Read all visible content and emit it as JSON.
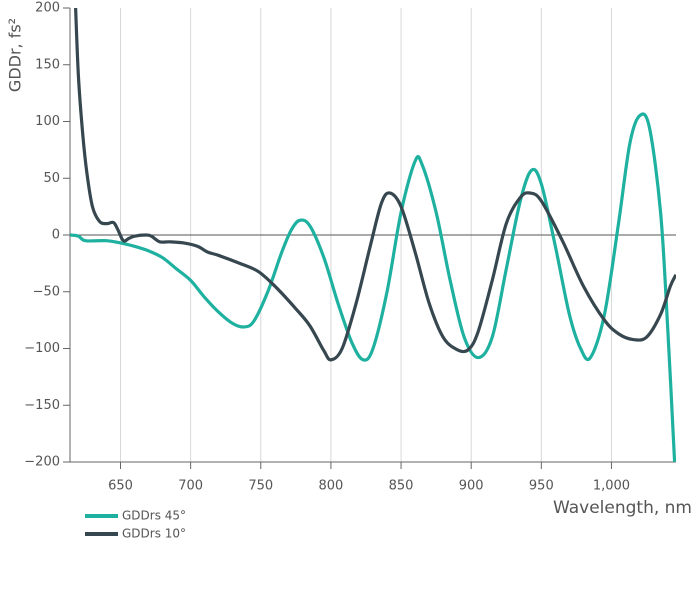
{
  "chart_data": {
    "type": "line",
    "x_label": "Wavelength, nm",
    "y_label": "GDDr, fs²",
    "xlim": [
      614,
      1046
    ],
    "xticks": [
      650,
      700,
      750,
      800,
      850,
      900,
      950,
      {
        "value": 1000,
        "label": "1,000"
      }
    ],
    "ylim": [
      -200,
      200
    ],
    "yticks": [
      {
        "value": -200,
        "label": "−200"
      },
      {
        "value": -150,
        "label": "−150"
      },
      {
        "value": -100,
        "label": "−100"
      },
      {
        "value": -50,
        "label": "−50"
      },
      0,
      50,
      100,
      150,
      200
    ],
    "grid": "x",
    "legend": "bottom-left",
    "series": [
      {
        "name": "GDDrs 45°",
        "color": "#1fb1a0",
        "x": [
          614,
          620,
          625,
          640,
          650,
          660,
          670,
          680,
          690,
          700,
          710,
          720,
          730,
          738,
          745,
          755,
          765,
          772,
          778,
          785,
          795,
          805,
          815,
          823,
          830,
          840,
          850,
          860,
          865,
          875,
          885,
          895,
          905,
          915,
          925,
          935,
          943,
          950,
          960,
          970,
          978,
          985,
          995,
          1005,
          1013,
          1020,
          1027,
          1035,
          1040,
          1045
        ],
        "values": [
          0,
          -1,
          -5,
          -5,
          -7,
          -10,
          -14,
          -20,
          -30,
          -40,
          -55,
          -68,
          -78,
          -81,
          -76,
          -50,
          -15,
          5,
          13,
          8,
          -20,
          -60,
          -95,
          -110,
          -100,
          -50,
          20,
          65,
          62,
          20,
          -40,
          -90,
          -108,
          -90,
          -30,
          30,
          57,
          45,
          -10,
          -70,
          -100,
          -108,
          -70,
          10,
          80,
          105,
          95,
          20,
          -80,
          -200
        ]
      },
      {
        "name": "GDDrs 10°",
        "color": "#37474f",
        "x": [
          618,
          620,
          623,
          626,
          630,
          635,
          640,
          645,
          648,
          652,
          656,
          660,
          668,
          672,
          678,
          685,
          695,
          705,
          712,
          720,
          735,
          748,
          760,
          775,
          785,
          795,
          800,
          808,
          818,
          828,
          836,
          842,
          850,
          860,
          870,
          880,
          890,
          898,
          905,
          915,
          925,
          935,
          942,
          950,
          965,
          980,
          995,
          1005,
          1015,
          1025,
          1035,
          1042,
          1046
        ],
        "values": [
          200,
          140,
          90,
          55,
          25,
          12,
          10,
          11,
          5,
          -5,
          -3,
          -1,
          0,
          -1,
          -6,
          -6,
          -7,
          -10,
          -15,
          -18,
          -25,
          -32,
          -45,
          -65,
          -80,
          -102,
          -110,
          -100,
          -60,
          -10,
          28,
          37,
          25,
          -15,
          -60,
          -90,
          -101,
          -101,
          -85,
          -40,
          10,
          33,
          37,
          30,
          -5,
          -45,
          -75,
          -87,
          -92,
          -90,
          -70,
          -45,
          -35
        ]
      }
    ]
  }
}
